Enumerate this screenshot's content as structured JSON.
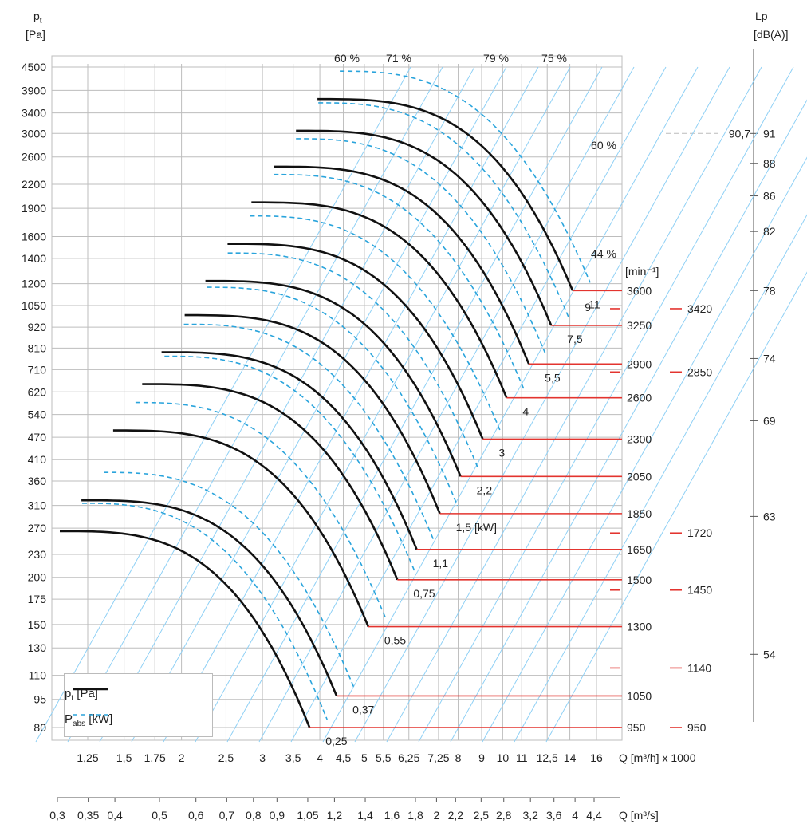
{
  "chart_data": {
    "type": "line",
    "yaxis_left": {
      "label_main": "p",
      "label_sub": "t",
      "unit": "[Pa]",
      "ticks": [
        "4500",
        "3900",
        "3400",
        "3000",
        "2600",
        "2200",
        "1900",
        "1600",
        "1400",
        "1200",
        "1050",
        "920",
        "810",
        "710",
        "620",
        "540",
        "470",
        "410",
        "360",
        "310",
        "270",
        "230",
        "200",
        "175",
        "150",
        "130",
        "110",
        "95",
        "80"
      ],
      "scale": "log"
    },
    "yaxis_right": {
      "label": "Lp",
      "unit": "[dB(A)]",
      "ticks": [
        {
          "v": "91",
          "at": 3000
        },
        {
          "v": "88",
          "at": 2500
        },
        {
          "v": "86",
          "at": 2050
        },
        {
          "v": "82",
          "at": 1650
        },
        {
          "v": "78",
          "at": 1150
        },
        {
          "v": "74",
          "at": 760
        },
        {
          "v": "69",
          "at": 520
        },
        {
          "v": "63",
          "at": 290
        },
        {
          "v": "54",
          "at": 125
        }
      ],
      "marker": "90,7"
    },
    "xaxis_q_m3h": {
      "label": "Q [m³/h] x 1000",
      "ticks": [
        "1,25",
        "1,5",
        "1,75",
        "2",
        "2,5",
        "3",
        "3,5",
        "4",
        "4,5",
        "5",
        "5,5",
        "6,25",
        "7,25",
        "8",
        "9",
        "10",
        "11",
        "12,5",
        "14",
        "16"
      ],
      "values": [
        1.25,
        1.5,
        1.75,
        2,
        2.5,
        3,
        3.5,
        4,
        4.5,
        5,
        5.5,
        6.25,
        7.25,
        8,
        9,
        10,
        11,
        12.5,
        14,
        16
      ],
      "scale": "log"
    },
    "xaxis_q_m3s": {
      "label": "Q [m³/s]",
      "ticks": [
        "0,3",
        "0,35",
        "0,4",
        "0,5",
        "0,6",
        "0,7",
        "0,8",
        "0,9",
        "1,05",
        "1,2",
        "1,4",
        "1,6",
        "1,8",
        "2",
        "2,2",
        "2,5",
        "2,8",
        "3,2",
        "3,6",
        "4",
        "4,4"
      ],
      "values": [
        0.3,
        0.35,
        0.4,
        0.5,
        0.6,
        0.7,
        0.8,
        0.9,
        1.05,
        1.2,
        1.4,
        1.6,
        1.8,
        2,
        2.2,
        2.5,
        2.8,
        3.2,
        3.6,
        4,
        4.4
      ]
    },
    "efficiency_labels": [
      {
        "text": "60 %"
      },
      {
        "text": "71 %"
      },
      {
        "text": "79 %"
      },
      {
        "text": "75 %"
      },
      {
        "text": "60 %"
      },
      {
        "text": "44 %"
      }
    ],
    "rpm_unit": "[min⁻¹]",
    "speed_curves": [
      {
        "rpm": "950",
        "q_max": 3.8,
        "p_shut": 265,
        "p_end": 80,
        "power": "0,25"
      },
      {
        "rpm": "1050",
        "q_max": 4.35,
        "p_shut": 320,
        "p_end": 97,
        "power": "0,37"
      },
      {
        "rpm": "1300",
        "q_max": 5.1,
        "p_shut": 490,
        "p_end": 148,
        "power": "0,55"
      },
      {
        "rpm": "1500",
        "q_max": 5.9,
        "p_shut": 650,
        "p_end": 197,
        "power": "0,75"
      },
      {
        "rpm": "1650",
        "q_max": 6.5,
        "p_shut": 790,
        "p_end": 237,
        "power": "1,1"
      },
      {
        "rpm": "1850",
        "q_max": 7.3,
        "p_shut": 990,
        "p_end": 295,
        "power": "1,5 [kW]"
      },
      {
        "rpm": "2050",
        "q_max": 8.1,
        "p_shut": 1220,
        "p_end": 370,
        "power": "2,2"
      },
      {
        "rpm": "2300",
        "q_max": 9.05,
        "p_shut": 1530,
        "p_end": 465,
        "power": "3"
      },
      {
        "rpm": "2600",
        "q_max": 10.2,
        "p_shut": 1970,
        "p_end": 598,
        "power": "4"
      },
      {
        "rpm": "2900",
        "q_max": 11.4,
        "p_shut": 2450,
        "p_end": 735,
        "power": "5,5"
      },
      {
        "rpm": "3250",
        "q_max": 12.75,
        "p_shut": 3050,
        "p_end": 930,
        "power": "7,5"
      },
      {
        "rpm": "3600",
        "q_max": 14.2,
        "p_shut": 3700,
        "p_end": 1150,
        "power": "11"
      }
    ],
    "extra_power_label": "9",
    "extra_rpm": [
      {
        "rpm": "3420",
        "p": 1030
      },
      {
        "rpm": "2850",
        "p": 700
      },
      {
        "rpm": "1720",
        "p": 262
      },
      {
        "rpm": "1450",
        "p": 185
      },
      {
        "rpm": "1140",
        "p": 115
      },
      {
        "rpm": "950",
        "p": 80
      }
    ],
    "legend": [
      {
        "main": "p",
        "sub": "t",
        "unit": " [Pa]",
        "style": "solid"
      },
      {
        "main": "P",
        "sub": "abs",
        "unit": " [kW]",
        "style": "dashed"
      }
    ]
  },
  "colors": {
    "pressure": "#111111",
    "power": "#2aa4dc",
    "rpm_marker": "#e3342f",
    "efficiency": "#8fd0f5",
    "grid": "#bdbdbd"
  }
}
